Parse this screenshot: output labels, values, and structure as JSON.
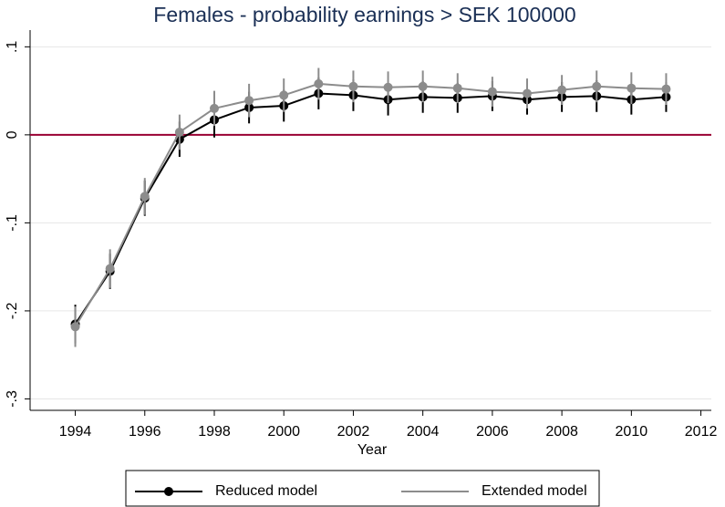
{
  "chart_data": {
    "type": "line",
    "title": "Females  - probability earnings > SEK 100000",
    "x_label": "Year",
    "x": [
      1994,
      1995,
      1996,
      1997,
      1998,
      1999,
      2000,
      2001,
      2002,
      2003,
      2004,
      2005,
      2006,
      2007,
      2008,
      2009,
      2010,
      2011
    ],
    "series": [
      {
        "name": "Reduced model",
        "color": "#000000",
        "values": [
          -0.215,
          -0.155,
          -0.072,
          -0.005,
          0.017,
          0.031,
          0.033,
          0.047,
          0.045,
          0.04,
          0.043,
          0.042,
          0.044,
          0.04,
          0.043,
          0.044,
          0.04,
          0.043
        ],
        "errors": [
          0.022,
          0.02,
          0.02,
          0.02,
          0.02,
          0.018,
          0.018,
          0.018,
          0.018,
          0.018,
          0.018,
          0.017,
          0.017,
          0.017,
          0.017,
          0.018,
          0.017,
          0.017
        ]
      },
      {
        "name": "Extended model",
        "color": "#8c8c8c",
        "values": [
          -0.218,
          -0.152,
          -0.07,
          0.003,
          0.03,
          0.039,
          0.045,
          0.058,
          0.055,
          0.054,
          0.055,
          0.053,
          0.049,
          0.047,
          0.051,
          0.055,
          0.053,
          0.052
        ],
        "errors": [
          0.023,
          0.022,
          0.021,
          0.02,
          0.02,
          0.019,
          0.019,
          0.018,
          0.018,
          0.018,
          0.018,
          0.017,
          0.017,
          0.017,
          0.017,
          0.018,
          0.018,
          0.018
        ]
      }
    ],
    "xlim": [
      1992.7,
      2012.3
    ],
    "ylim": [
      -0.313,
      0.119
    ],
    "xticks": [
      1994,
      1996,
      1998,
      2000,
      2002,
      2004,
      2006,
      2008,
      2010,
      2012
    ],
    "yticks": [
      {
        "value": -0.3,
        "label": "-.3"
      },
      {
        "value": -0.2,
        "label": "-.2"
      },
      {
        "value": -0.1,
        "label": "-.1"
      },
      0,
      {
        "value": 0.1,
        "label": ".1"
      }
    ],
    "grid": true,
    "reference_line": {
      "value": 0,
      "color": "#990033"
    },
    "legend": "bottom"
  }
}
